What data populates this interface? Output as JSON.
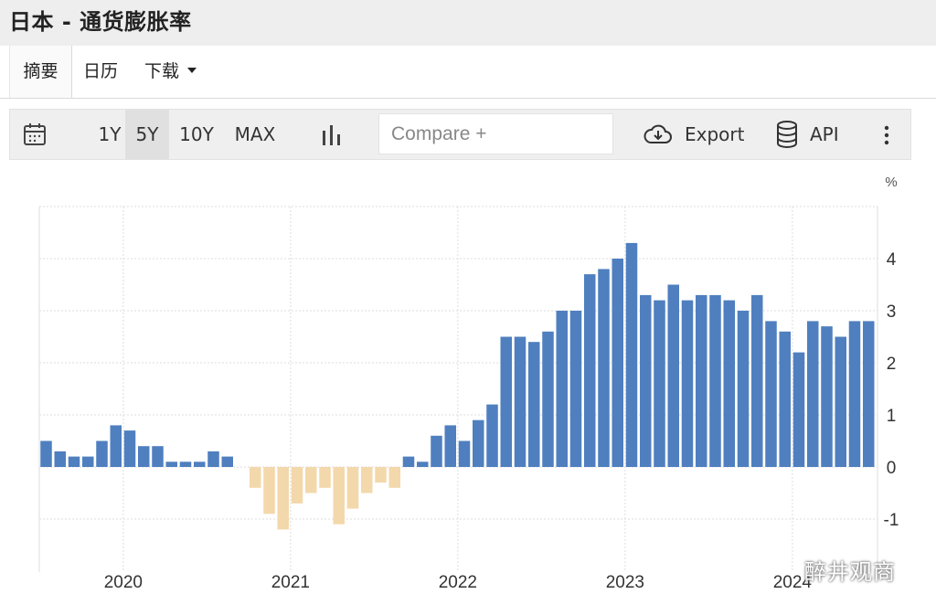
{
  "header": {
    "title": "日本 - 通货膨胀率"
  },
  "tabs": [
    {
      "label": "摘要",
      "active": true
    },
    {
      "label": "日历",
      "active": false
    },
    {
      "label": "下载",
      "active": false,
      "dropdown": true
    }
  ],
  "toolbar": {
    "calendar_icon": "calendar-icon",
    "ranges": [
      "1Y",
      "5Y",
      "10Y",
      "MAX"
    ],
    "selected_range": "5Y",
    "chart_type_icon": "bar-chart-icon",
    "compare_placeholder": "Compare +",
    "export_label": "Export",
    "api_label": "API",
    "more_icon": "more-vertical-icon"
  },
  "colors": {
    "positive_bar": "#4f7fbf",
    "negative_bar": "#f3d8ab",
    "grid": "#dddddd"
  },
  "chart_data": {
    "type": "bar",
    "title": "",
    "unit": "%",
    "xlabel": "",
    "ylabel": "",
    "ylim": [
      -2,
      5
    ],
    "yticks": [
      -1,
      0,
      1,
      2,
      3,
      4
    ],
    "year_labels": [
      "2020",
      "2021",
      "2022",
      "2023",
      "2024"
    ],
    "grid": true,
    "first_month": "2019-07",
    "values": [
      0.5,
      0.3,
      0.2,
      0.2,
      0.5,
      0.8,
      0.7,
      0.4,
      0.4,
      0.1,
      0.1,
      0.1,
      0.3,
      0.2,
      0.0,
      -0.4,
      -0.9,
      -1.2,
      -0.7,
      -0.5,
      -0.4,
      -1.1,
      -0.8,
      -0.5,
      -0.3,
      -0.4,
      0.2,
      0.1,
      0.6,
      0.8,
      0.5,
      0.9,
      1.2,
      2.5,
      2.5,
      2.4,
      2.6,
      3.0,
      3.0,
      3.7,
      3.8,
      4.0,
      4.3,
      3.3,
      3.2,
      3.5,
      3.2,
      3.3,
      3.3,
      3.2,
      3.0,
      3.3,
      2.8,
      2.6,
      2.2,
      2.8,
      2.7,
      2.5,
      2.8,
      2.8
    ]
  },
  "watermark": "醉井观商"
}
